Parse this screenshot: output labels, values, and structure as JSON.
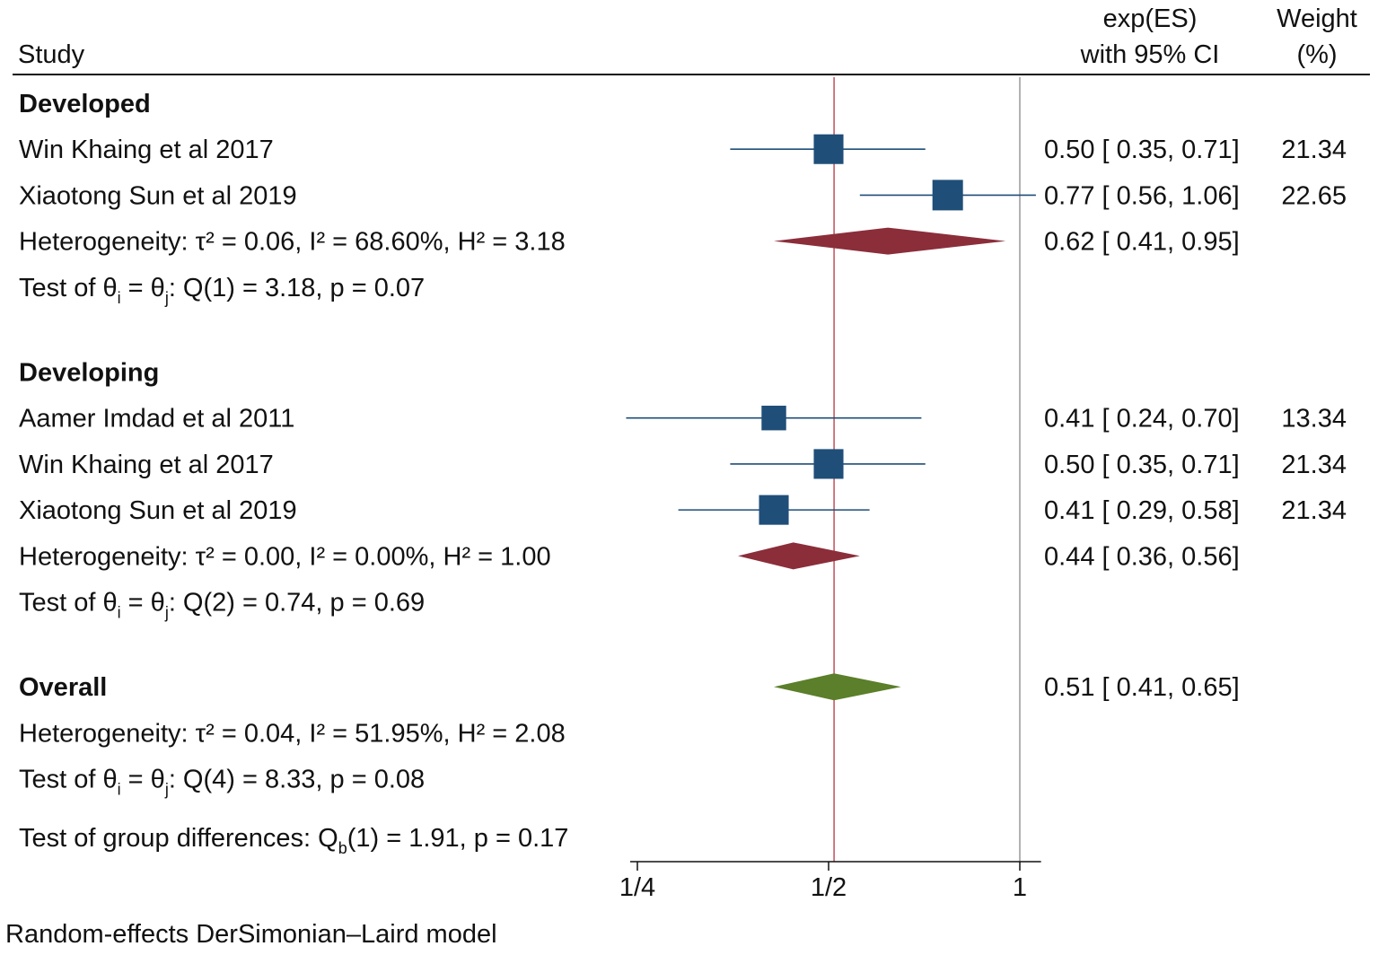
{
  "header": {
    "study": "Study",
    "es_line1": "exp(ES)",
    "es_line2": "with 95% CI",
    "weight_line1": "Weight",
    "weight_line2": "(%)"
  },
  "footnote": "Random-effects DerSimonian–Laird model",
  "colors": {
    "square": "#1f4e79",
    "subgroup_diamond": "#8b2e3a",
    "overall_diamond": "#5b7f2a",
    "ref_line": "#c0505a",
    "null_line": "#999999"
  },
  "chart_data": {
    "type": "forest",
    "scale": "log",
    "x_ticks": [
      {
        "value": 0.25,
        "label": "1/4"
      },
      {
        "value": 0.5,
        "label": "1/2"
      },
      {
        "value": 1,
        "label": "1"
      }
    ],
    "xlim": [
      0.25,
      1.08
    ],
    "overall_ref": 0.51,
    "null_value": 1,
    "rows": [
      {
        "kind": "group",
        "label": "Developed"
      },
      {
        "kind": "study",
        "label": "Win Khaing et al 2017",
        "es": 0.5,
        "lo": 0.35,
        "hi": 0.71,
        "es_text": "0.50 [ 0.35,  0.71]",
        "weight": "21.34"
      },
      {
        "kind": "study",
        "label": "Xiaotong Sun et al 2019",
        "es": 0.77,
        "lo": 0.56,
        "hi": 1.06,
        "es_text": "0.77 [ 0.56,  1.06]",
        "weight": "22.65"
      },
      {
        "kind": "het",
        "label": "Heterogeneity: τ² = 0.06, I² = 68.60%, H² = 3.18",
        "es": 0.62,
        "lo": 0.41,
        "hi": 0.95,
        "es_text": "0.62 [ 0.41,  0.95]",
        "diamond": "subgroup"
      },
      {
        "kind": "test",
        "label": "Test of θ",
        "i": "i",
        "eq": " = θ",
        "j": "j",
        "rest": ": Q(1) = 3.18, p = 0.07"
      },
      {
        "kind": "gap"
      },
      {
        "kind": "group",
        "label": "Developing"
      },
      {
        "kind": "study",
        "label": "Aamer Imdad et al 2011",
        "es": 0.41,
        "lo": 0.24,
        "hi": 0.7,
        "es_text": "0.41 [ 0.24,  0.70]",
        "weight": "13.34"
      },
      {
        "kind": "study",
        "label": "Win Khaing et al 2017",
        "es": 0.5,
        "lo": 0.35,
        "hi": 0.71,
        "es_text": "0.50 [ 0.35,  0.71]",
        "weight": "21.34"
      },
      {
        "kind": "study",
        "label": "Xiaotong Sun et al 2019",
        "es": 0.41,
        "lo": 0.29,
        "hi": 0.58,
        "es_text": "0.41 [ 0.29,  0.58]",
        "weight": "21.34"
      },
      {
        "kind": "het",
        "label": "Heterogeneity: τ² = 0.00, I² = 0.00%, H² = 1.00",
        "es": 0.44,
        "lo": 0.36,
        "hi": 0.56,
        "es_text": "0.44 [ 0.36,  0.56]",
        "diamond": "subgroup"
      },
      {
        "kind": "test",
        "label": "Test of θ",
        "i": "i",
        "eq": " = θ",
        "j": "j",
        "rest": ": Q(2) = 0.74, p = 0.69"
      },
      {
        "kind": "gap"
      },
      {
        "kind": "overall",
        "label": "Overall",
        "es": 0.51,
        "lo": 0.41,
        "hi": 0.65,
        "es_text": "0.51 [ 0.41,  0.65]",
        "diamond": "overall"
      },
      {
        "kind": "het_text",
        "label": "Heterogeneity: τ² = 0.04, I² = 51.95%, H² = 2.08"
      },
      {
        "kind": "test",
        "label": "Test of θ",
        "i": "i",
        "eq": " = θ",
        "j": "j",
        "rest": ": Q(4) = 8.33, p = 0.08"
      },
      {
        "kind": "groupdiff",
        "label": "Test of group differences: Q",
        "sub": "b",
        "rest": "(1) = 1.91, p = 0.17"
      }
    ]
  }
}
